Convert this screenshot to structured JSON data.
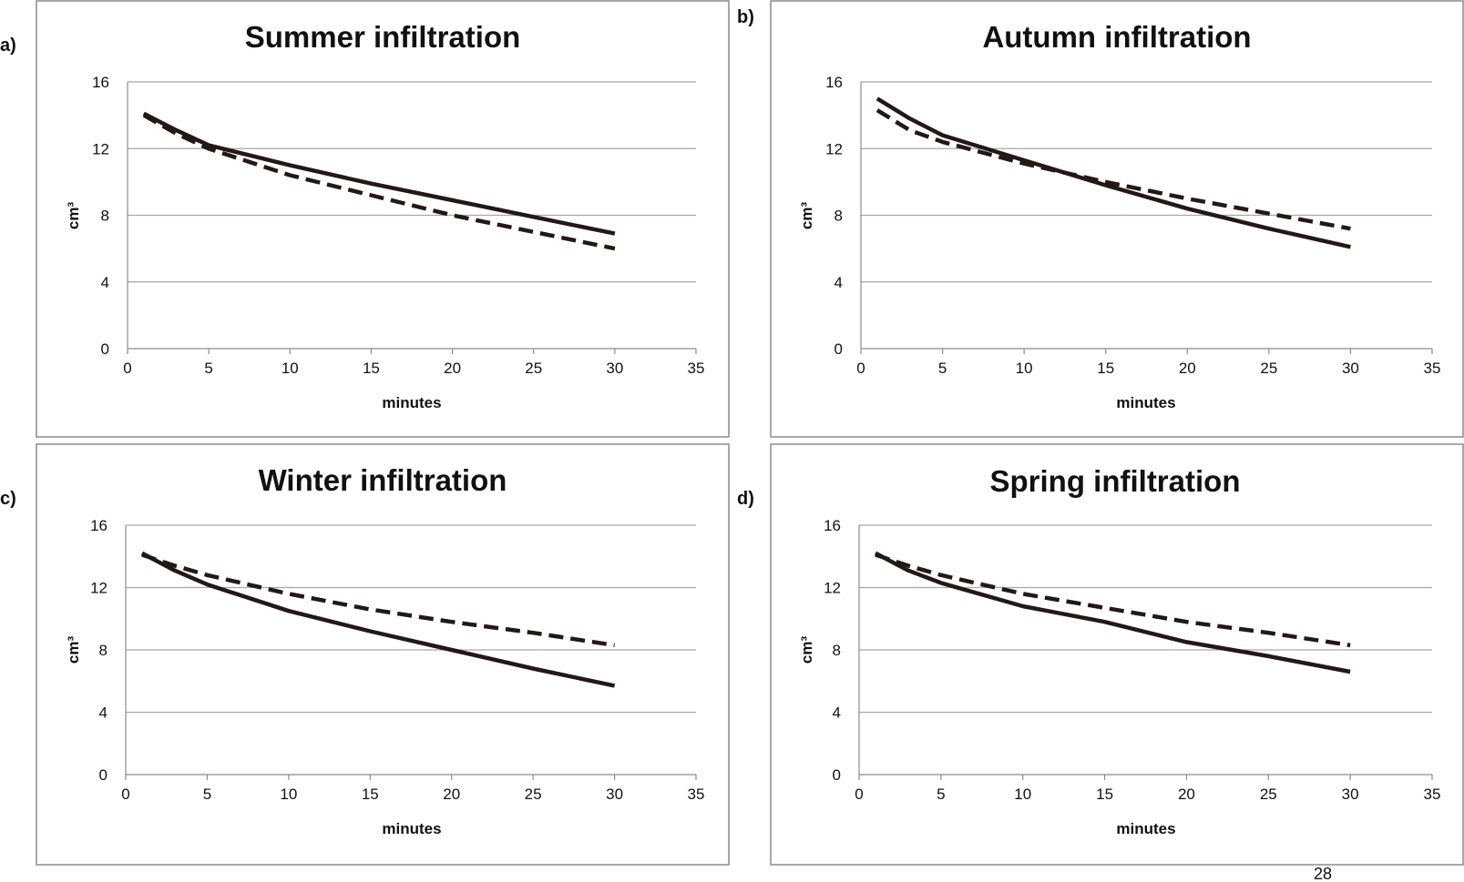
{
  "page_number": "28",
  "chart_data": [
    {
      "panel": "a)",
      "type": "line",
      "title": "Summer infiltration",
      "xlabel": "minutes",
      "ylabel": "cm³",
      "xlim": [
        0,
        35
      ],
      "ylim": [
        0,
        16
      ],
      "xticks": [
        0,
        5,
        10,
        15,
        20,
        25,
        30,
        35
      ],
      "yticks": [
        0,
        4,
        8,
        12,
        16
      ],
      "grid": "horizontal",
      "series": [
        {
          "style": "solid",
          "x": [
            1,
            3,
            5,
            10,
            15,
            20,
            25,
            30
          ],
          "y": [
            14.1,
            13.1,
            12.2,
            11.0,
            9.9,
            8.9,
            7.9,
            6.9
          ]
        },
        {
          "style": "dashed",
          "x": [
            1,
            3,
            5,
            10,
            15,
            20,
            25,
            30
          ],
          "y": [
            14.0,
            12.9,
            12.0,
            10.4,
            9.2,
            8.0,
            7.0,
            6.0
          ]
        }
      ]
    },
    {
      "panel": "b)",
      "type": "line",
      "title": "Autumn infiltration",
      "xlabel": "minutes",
      "ylabel": "cm³",
      "xlim": [
        0,
        35
      ],
      "ylim": [
        0,
        16
      ],
      "xticks": [
        0,
        5,
        10,
        15,
        20,
        25,
        30,
        35
      ],
      "yticks": [
        0,
        4,
        8,
        12,
        16
      ],
      "grid": "horizontal",
      "series": [
        {
          "style": "solid",
          "x": [
            1,
            3,
            5,
            10,
            15,
            20,
            25,
            30
          ],
          "y": [
            15.0,
            13.8,
            12.8,
            11.3,
            9.8,
            8.4,
            7.2,
            6.1
          ]
        },
        {
          "style": "dashed",
          "x": [
            1,
            3,
            5,
            10,
            15,
            20,
            25,
            30
          ],
          "y": [
            14.3,
            13.1,
            12.4,
            11.1,
            10.0,
            9.0,
            8.1,
            7.2
          ]
        }
      ]
    },
    {
      "panel": "c)",
      "type": "line",
      "title": "Winter infiltration",
      "xlabel": "minutes",
      "ylabel": "cm³",
      "xlim": [
        0,
        35
      ],
      "ylim": [
        0,
        16
      ],
      "xticks": [
        0,
        5,
        10,
        15,
        20,
        25,
        30,
        35
      ],
      "yticks": [
        0,
        4,
        8,
        12,
        16
      ],
      "grid": "horizontal",
      "series": [
        {
          "style": "solid",
          "x": [
            1,
            3,
            5,
            10,
            15,
            20,
            25,
            30
          ],
          "y": [
            14.2,
            13.1,
            12.2,
            10.5,
            9.2,
            8.0,
            6.8,
            5.7
          ]
        },
        {
          "style": "dashed",
          "x": [
            1,
            3,
            5,
            10,
            15,
            20,
            25,
            30
          ],
          "y": [
            14.1,
            13.4,
            12.8,
            11.6,
            10.6,
            9.8,
            9.1,
            8.3
          ]
        }
      ]
    },
    {
      "panel": "d)",
      "type": "line",
      "title": "Spring infiltration",
      "xlabel": "minutes",
      "ylabel": "cm³",
      "xlim": [
        0,
        35
      ],
      "ylim": [
        0,
        16
      ],
      "xticks": [
        0,
        5,
        10,
        15,
        20,
        25,
        30,
        35
      ],
      "yticks": [
        0,
        4,
        8,
        12,
        16
      ],
      "grid": "horizontal",
      "series": [
        {
          "style": "solid",
          "x": [
            1,
            3,
            5,
            10,
            15,
            20,
            25,
            30
          ],
          "y": [
            14.2,
            13.1,
            12.3,
            10.8,
            9.8,
            8.5,
            7.6,
            6.6
          ]
        },
        {
          "style": "dashed",
          "x": [
            1,
            3,
            5,
            10,
            15,
            20,
            25,
            30
          ],
          "y": [
            14.1,
            13.4,
            12.8,
            11.6,
            10.7,
            9.8,
            9.1,
            8.3
          ]
        }
      ]
    }
  ]
}
